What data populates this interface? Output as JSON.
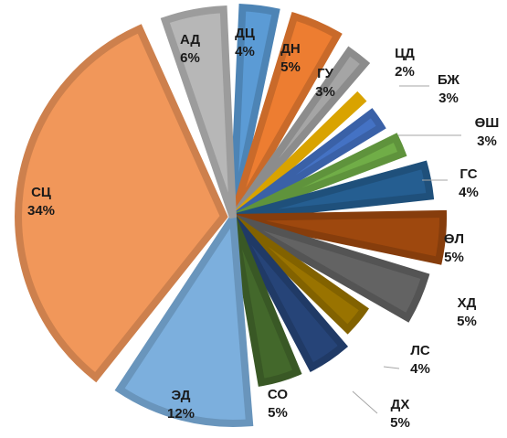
{
  "chart_data": {
    "type": "pie",
    "exploded": true,
    "slices": [
      {
        "label": "ДЦ",
        "percent": "4%",
        "value": 4,
        "color": "#5b9bd5"
      },
      {
        "label": "ДН",
        "percent": "5%",
        "value": 5,
        "color": "#ed7d31"
      },
      {
        "label": "ГУ",
        "percent": "3%",
        "value": 3,
        "color": "#a5a5a5"
      },
      {
        "label": "ЦД",
        "percent": "2%",
        "value": 2,
        "color": "#ffc000"
      },
      {
        "label": "БЖ",
        "percent": "3%",
        "value": 3,
        "color": "#4472c4"
      },
      {
        "label": "ӨШ",
        "percent": "3%",
        "value": 3,
        "color": "#70ad47"
      },
      {
        "label": "ГС",
        "percent": "4%",
        "value": 4,
        "color": "#255e91"
      },
      {
        "label": "ӨЛ",
        "percent": "5%",
        "value": 5,
        "color": "#9e480e"
      },
      {
        "label": "ХД",
        "percent": "5%",
        "value": 5,
        "color": "#636363"
      },
      {
        "label": "ЛС",
        "percent": "4%",
        "value": 4,
        "color": "#997300"
      },
      {
        "label": "ДХ",
        "percent": "5%",
        "value": 5,
        "color": "#264478"
      },
      {
        "label": "СО",
        "percent": "5%",
        "value": 5,
        "color": "#43682b"
      },
      {
        "label": "ЭД",
        "percent": "12%",
        "value": 12,
        "color": "#7cafdd"
      },
      {
        "label": "СЦ",
        "percent": "34%",
        "value": 34,
        "color": "#f1975a"
      },
      {
        "label": "АД",
        "percent": "6%",
        "value": 6,
        "color": "#b7b7b7"
      }
    ]
  }
}
